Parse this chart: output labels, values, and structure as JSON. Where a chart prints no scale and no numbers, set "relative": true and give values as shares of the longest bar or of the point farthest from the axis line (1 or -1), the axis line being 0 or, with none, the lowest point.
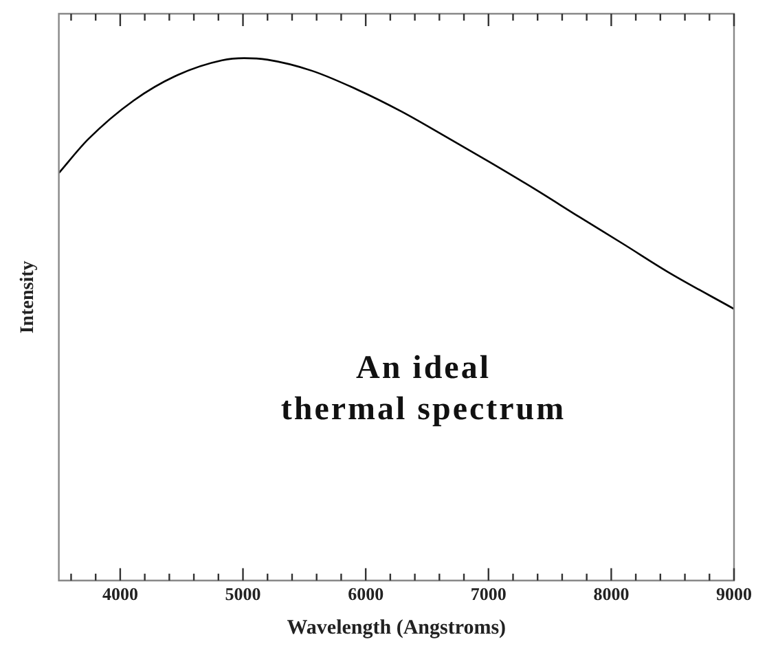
{
  "chart_data": {
    "type": "line",
    "relative": true,
    "xlabel": "Wavelength (Angstroms)",
    "ylabel": "Intensity",
    "annotations": [
      "An ideal\nthermal spectrum"
    ],
    "x": [
      3500,
      3740,
      4110,
      4470,
      4830,
      5010,
      5200,
      5560,
      5920,
      6290,
      6650,
      7010,
      7380,
      7740,
      8100,
      8460,
      9000
    ],
    "series": [
      {
        "color": "#000000",
        "values": [
          0.78,
          0.845,
          0.919,
          0.968,
          0.996,
          1,
          0.997,
          0.976,
          0.941,
          0.898,
          0.85,
          0.801,
          0.749,
          0.696,
          0.644,
          0.591,
          0.52
        ]
      }
    ],
    "xlim": [
      3500,
      9000
    ],
    "xticks": [
      {
        "value": 3600,
        "label": null
      },
      {
        "value": 3800,
        "label": null
      },
      4000,
      {
        "value": 4200,
        "label": null
      },
      {
        "value": 4400,
        "label": null
      },
      {
        "value": 4600,
        "label": null
      },
      {
        "value": 4800,
        "label": null
      },
      5000,
      {
        "value": 5200,
        "label": null
      },
      {
        "value": 5400,
        "label": null
      },
      {
        "value": 5600,
        "label": null
      },
      {
        "value": 5800,
        "label": null
      },
      6000,
      {
        "value": 6200,
        "label": null
      },
      {
        "value": 6400,
        "label": null
      },
      {
        "value": 6600,
        "label": null
      },
      {
        "value": 6800,
        "label": null
      },
      7000,
      {
        "value": 7200,
        "label": null
      },
      {
        "value": 7400,
        "label": null
      },
      {
        "value": 7600,
        "label": null
      },
      {
        "value": 7800,
        "label": null
      },
      8000,
      {
        "value": 8200,
        "label": null
      },
      {
        "value": 8400,
        "label": null
      },
      {
        "value": 8600,
        "label": null
      },
      {
        "value": 8800,
        "label": null
      },
      9000
    ],
    "grid": false,
    "legend": false,
    "marker": "none",
    "line_style": "solid"
  }
}
